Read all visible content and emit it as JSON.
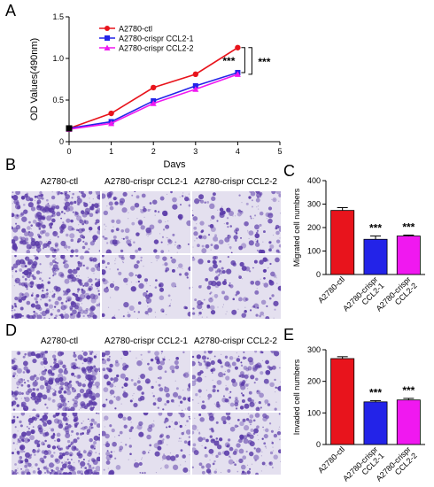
{
  "panels": {
    "A": {
      "letter": "A"
    },
    "B": {
      "letter": "B",
      "col_headers": [
        "A2780-ctl",
        "A2780-crispr CCL2-1",
        "A2780-crispr CCL2-2"
      ]
    },
    "C": {
      "letter": "C"
    },
    "D": {
      "letter": "D",
      "col_headers": [
        "A2780-ctl",
        "A2780-crispr CCL2-1",
        "A2780-crispr CCL2-2"
      ]
    },
    "E": {
      "letter": "E"
    }
  },
  "colors": {
    "ctl": "#e8141c",
    "ccl2_1": "#2323e8",
    "ccl2_2": "#f018f0",
    "stain": "#5a3aa8",
    "stain_bg": "#e4e0ef"
  },
  "chart_data": [
    {
      "id": "A",
      "type": "line",
      "title": "",
      "xlabel": "Days",
      "ylabel": "OD Values(490nm)",
      "x": [
        0,
        1,
        2,
        3,
        4
      ],
      "xlim": [
        0,
        5
      ],
      "ylim": [
        0,
        1.5
      ],
      "xticks": [
        "0",
        "1",
        "2",
        "3",
        "4",
        "5"
      ],
      "yticks": [
        "0",
        "0.5",
        "1.0",
        "1.5"
      ],
      "legend_position": "top-left",
      "series": [
        {
          "name": "A2780-ctl",
          "color": "#e8141c",
          "marker": "circle",
          "values": [
            0.16,
            0.34,
            0.65,
            0.81,
            1.13
          ]
        },
        {
          "name": "A2780-crispr CCL2-1",
          "color": "#2323e8",
          "marker": "square",
          "values": [
            0.16,
            0.24,
            0.49,
            0.67,
            0.83
          ]
        },
        {
          "name": "A2780-crispr CCL2-2",
          "color": "#f018f0",
          "marker": "triangle",
          "values": [
            0.15,
            0.22,
            0.46,
            0.63,
            0.81
          ]
        }
      ],
      "annotations": [
        "***",
        "***"
      ]
    },
    {
      "id": "C",
      "type": "bar",
      "ylabel": "Migrated cell numbers",
      "categories": [
        "A2780-ctl",
        "A2780-crispr CCL2-1",
        "A2780-crispr CCL2-2"
      ],
      "values": [
        273,
        150,
        164
      ],
      "errors": [
        12,
        14,
        4
      ],
      "colors": [
        "#e8141c",
        "#2323e8",
        "#f018f0"
      ],
      "ylim": [
        0,
        400
      ],
      "yticks": [
        "0",
        "100",
        "200",
        "300",
        "400"
      ],
      "significance": [
        "",
        "***",
        "***"
      ]
    },
    {
      "id": "E",
      "type": "bar",
      "ylabel": "Invaded cell numbers",
      "categories": [
        "A2780-ctl",
        "A2780-crispr CCL2-1",
        "A2780-crispr CCL2-2"
      ],
      "values": [
        272,
        135,
        141
      ],
      "errors": [
        6,
        4,
        5
      ],
      "colors": [
        "#e8141c",
        "#2323e8",
        "#f018f0"
      ],
      "ylim": [
        0,
        300
      ],
      "yticks": [
        "0",
        "100",
        "200",
        "300"
      ],
      "significance": [
        "",
        "***",
        "***"
      ]
    }
  ]
}
